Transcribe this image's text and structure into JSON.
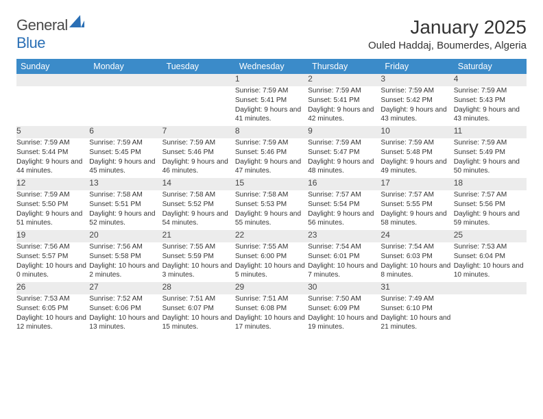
{
  "logo": {
    "text_a": "General",
    "text_b": "Blue",
    "shape_color": "#2a6fb5"
  },
  "title": "January 2025",
  "location": "Ouled Haddaj, Boumerdes, Algeria",
  "style": {
    "header_bg": "#3b8bc9",
    "header_fg": "#ffffff",
    "daynum_bg": "#ececec",
    "border_color": "#2a6fb5",
    "page_bg": "#ffffff",
    "body_fontsize": 10.2,
    "daynum_fontsize": 12,
    "weekday_fontsize": 12.5,
    "title_fontsize": 28,
    "location_fontsize": 15
  },
  "weekdays": [
    "Sunday",
    "Monday",
    "Tuesday",
    "Wednesday",
    "Thursday",
    "Friday",
    "Saturday"
  ],
  "labels": {
    "sunrise": "Sunrise:",
    "sunset": "Sunset:",
    "daylight": "Daylight:"
  },
  "weeks": [
    [
      null,
      null,
      null,
      {
        "n": "1",
        "sunrise": "7:59 AM",
        "sunset": "5:41 PM",
        "daylight": "9 hours and 41 minutes."
      },
      {
        "n": "2",
        "sunrise": "7:59 AM",
        "sunset": "5:41 PM",
        "daylight": "9 hours and 42 minutes."
      },
      {
        "n": "3",
        "sunrise": "7:59 AM",
        "sunset": "5:42 PM",
        "daylight": "9 hours and 43 minutes."
      },
      {
        "n": "4",
        "sunrise": "7:59 AM",
        "sunset": "5:43 PM",
        "daylight": "9 hours and 43 minutes."
      }
    ],
    [
      {
        "n": "5",
        "sunrise": "7:59 AM",
        "sunset": "5:44 PM",
        "daylight": "9 hours and 44 minutes."
      },
      {
        "n": "6",
        "sunrise": "7:59 AM",
        "sunset": "5:45 PM",
        "daylight": "9 hours and 45 minutes."
      },
      {
        "n": "7",
        "sunrise": "7:59 AM",
        "sunset": "5:46 PM",
        "daylight": "9 hours and 46 minutes."
      },
      {
        "n": "8",
        "sunrise": "7:59 AM",
        "sunset": "5:46 PM",
        "daylight": "9 hours and 47 minutes."
      },
      {
        "n": "9",
        "sunrise": "7:59 AM",
        "sunset": "5:47 PM",
        "daylight": "9 hours and 48 minutes."
      },
      {
        "n": "10",
        "sunrise": "7:59 AM",
        "sunset": "5:48 PM",
        "daylight": "9 hours and 49 minutes."
      },
      {
        "n": "11",
        "sunrise": "7:59 AM",
        "sunset": "5:49 PM",
        "daylight": "9 hours and 50 minutes."
      }
    ],
    [
      {
        "n": "12",
        "sunrise": "7:59 AM",
        "sunset": "5:50 PM",
        "daylight": "9 hours and 51 minutes."
      },
      {
        "n": "13",
        "sunrise": "7:58 AM",
        "sunset": "5:51 PM",
        "daylight": "9 hours and 52 minutes."
      },
      {
        "n": "14",
        "sunrise": "7:58 AM",
        "sunset": "5:52 PM",
        "daylight": "9 hours and 54 minutes."
      },
      {
        "n": "15",
        "sunrise": "7:58 AM",
        "sunset": "5:53 PM",
        "daylight": "9 hours and 55 minutes."
      },
      {
        "n": "16",
        "sunrise": "7:57 AM",
        "sunset": "5:54 PM",
        "daylight": "9 hours and 56 minutes."
      },
      {
        "n": "17",
        "sunrise": "7:57 AM",
        "sunset": "5:55 PM",
        "daylight": "9 hours and 58 minutes."
      },
      {
        "n": "18",
        "sunrise": "7:57 AM",
        "sunset": "5:56 PM",
        "daylight": "9 hours and 59 minutes."
      }
    ],
    [
      {
        "n": "19",
        "sunrise": "7:56 AM",
        "sunset": "5:57 PM",
        "daylight": "10 hours and 0 minutes."
      },
      {
        "n": "20",
        "sunrise": "7:56 AM",
        "sunset": "5:58 PM",
        "daylight": "10 hours and 2 minutes."
      },
      {
        "n": "21",
        "sunrise": "7:55 AM",
        "sunset": "5:59 PM",
        "daylight": "10 hours and 3 minutes."
      },
      {
        "n": "22",
        "sunrise": "7:55 AM",
        "sunset": "6:00 PM",
        "daylight": "10 hours and 5 minutes."
      },
      {
        "n": "23",
        "sunrise": "7:54 AM",
        "sunset": "6:01 PM",
        "daylight": "10 hours and 7 minutes."
      },
      {
        "n": "24",
        "sunrise": "7:54 AM",
        "sunset": "6:03 PM",
        "daylight": "10 hours and 8 minutes."
      },
      {
        "n": "25",
        "sunrise": "7:53 AM",
        "sunset": "6:04 PM",
        "daylight": "10 hours and 10 minutes."
      }
    ],
    [
      {
        "n": "26",
        "sunrise": "7:53 AM",
        "sunset": "6:05 PM",
        "daylight": "10 hours and 12 minutes."
      },
      {
        "n": "27",
        "sunrise": "7:52 AM",
        "sunset": "6:06 PM",
        "daylight": "10 hours and 13 minutes."
      },
      {
        "n": "28",
        "sunrise": "7:51 AM",
        "sunset": "6:07 PM",
        "daylight": "10 hours and 15 minutes."
      },
      {
        "n": "29",
        "sunrise": "7:51 AM",
        "sunset": "6:08 PM",
        "daylight": "10 hours and 17 minutes."
      },
      {
        "n": "30",
        "sunrise": "7:50 AM",
        "sunset": "6:09 PM",
        "daylight": "10 hours and 19 minutes."
      },
      {
        "n": "31",
        "sunrise": "7:49 AM",
        "sunset": "6:10 PM",
        "daylight": "10 hours and 21 minutes."
      },
      null
    ]
  ]
}
